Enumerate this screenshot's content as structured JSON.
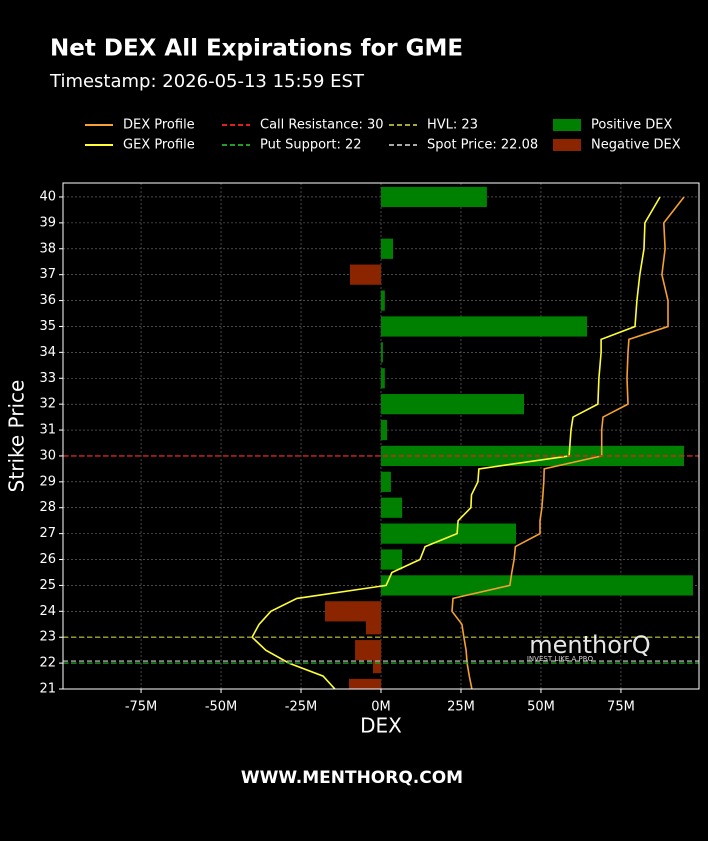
{
  "chart_data": {
    "type": "bar",
    "orientation": "horizontal",
    "title": "Net DEX All Expirations for GME",
    "subtitle": "Timestamp: 2026-05-13 15:59 EST",
    "xlabel": "DEX",
    "ylabel": "Strike Price",
    "footer": "WWW.MENTHORQ.COM",
    "watermark": "menthorQ",
    "watermark_tagline": "INVEST LIKE A PRO",
    "xlim": [
      -99.4,
      99.4
    ],
    "xticks": [
      {
        "value": -75,
        "label": "-75M"
      },
      {
        "value": -50,
        "label": "-50M"
      },
      {
        "value": -25,
        "label": "-25M"
      },
      {
        "value": 0,
        "label": "0M"
      },
      {
        "value": 25,
        "label": "25M"
      },
      {
        "value": 50,
        "label": "50M"
      },
      {
        "value": 75,
        "label": "75M"
      }
    ],
    "ylim": [
      21,
      40.54
    ],
    "yticks": [
      21,
      22,
      23,
      24,
      25,
      26,
      27,
      28,
      29,
      30,
      31,
      32,
      33,
      34,
      35,
      36,
      37,
      38,
      39,
      40
    ],
    "grid": true,
    "bars": {
      "strikes": [
        21,
        22,
        22.5,
        23.5,
        24,
        25,
        26,
        27,
        28,
        29,
        30,
        31,
        32,
        33,
        34,
        35,
        36,
        37,
        38,
        40
      ],
      "values": [
        -10,
        -2.5,
        -8.1,
        -4.7,
        -17.5,
        97.5,
        6.6,
        42.2,
        6.6,
        3.1,
        94.7,
        1.9,
        44.7,
        1.2,
        0.6,
        64.4,
        1.2,
        -9.7,
        3.75,
        33.1
      ],
      "positive": {
        "name": "Positive DEX",
        "color": "#008000"
      },
      "negative": {
        "name": "Negative DEX",
        "color": "#8b2500"
      }
    },
    "lines": [
      {
        "name": "DEX Profile",
        "color": "#f5a030",
        "strikes": [
          21,
          21.5,
          22,
          22.5,
          23,
          23.5,
          24,
          24.5,
          25,
          25.5,
          26,
          26.5,
          27,
          27.5,
          28,
          28.5,
          29,
          29.5,
          30,
          31,
          31.5,
          32,
          33,
          34,
          34.5,
          35,
          36,
          37,
          38,
          39,
          40
        ],
        "values": [
          28.4,
          27.6,
          26.9,
          26.6,
          25.9,
          25.3,
          22.2,
          22.5,
          40.3,
          40.9,
          41.6,
          42,
          49.7,
          49.7,
          50.3,
          50.6,
          50.9,
          51,
          69,
          69,
          69.4,
          77.2,
          76.9,
          77.2,
          77.5,
          89.7,
          89.7,
          87.8,
          88.8,
          88.4,
          94.7
        ]
      },
      {
        "name": "GEX Profile",
        "color": "#ffff33",
        "strikes": [
          21,
          21.5,
          22,
          22.5,
          23,
          23.5,
          24,
          24.5,
          25,
          25.5,
          26,
          26.5,
          27,
          27.5,
          28,
          28.5,
          29,
          29.5,
          30,
          31,
          31.5,
          32,
          33,
          34,
          34.5,
          35,
          36,
          37,
          38,
          39,
          40
        ],
        "values": [
          -14.4,
          -18.1,
          -28.8,
          -36,
          -40.3,
          -38.1,
          -34.4,
          -26.3,
          1.6,
          3.4,
          12.2,
          13.8,
          23.8,
          24.1,
          28.1,
          28.3,
          30.3,
          30.6,
          58.8,
          59.4,
          60,
          67.8,
          68.1,
          68.8,
          68.8,
          79.4,
          80,
          80.9,
          82.2,
          82.5,
          87.2
        ]
      }
    ],
    "levels": [
      {
        "name": "Call Resistance: 30",
        "value": 30,
        "color": "#e02020"
      },
      {
        "name": "Put Support: 22",
        "value": 22,
        "color": "#1fa01f"
      },
      {
        "name": "HVL: 23",
        "value": 23,
        "color": "#a8a830"
      },
      {
        "name": "Spot Price: 22.08",
        "value": 22.08,
        "color": "#aaaaaa"
      }
    ]
  }
}
